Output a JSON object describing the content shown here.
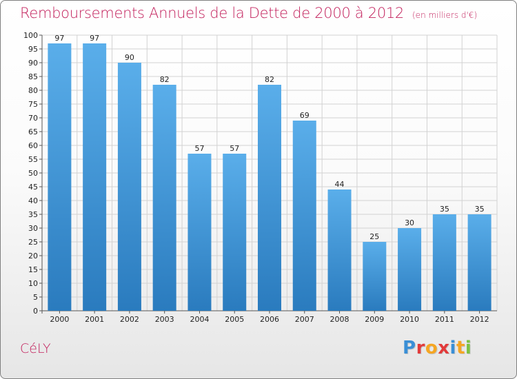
{
  "title": "Remboursements Annuels de la Dette de 2000 à 2012",
  "subtitle": "(en milliers d'€)",
  "commune": "CéLY",
  "logo": {
    "text": "Proxiti",
    "letter_colors": [
      "#3a8fd6",
      "#e23b3b",
      "#f5a623",
      "#e23b3b",
      "#3a8fd6",
      "#f5a623",
      "#7cc242"
    ]
  },
  "colors": {
    "title": "#c21f5b",
    "bar_top": "#5aaeea",
    "bar_bottom": "#2a7bbe",
    "grid": "#d2d2d2"
  },
  "chart_data": {
    "type": "bar",
    "title": "Remboursements Annuels de la Dette de 2000 à 2012",
    "subtitle": "(en milliers d'€)",
    "categories": [
      "2000",
      "2001",
      "2002",
      "2003",
      "2004",
      "2005",
      "2006",
      "2007",
      "2008",
      "2009",
      "2010",
      "2011",
      "2012"
    ],
    "values": [
      97,
      97,
      90,
      82,
      57,
      57,
      82,
      69,
      44,
      25,
      30,
      35,
      35
    ],
    "ylim": [
      0,
      100
    ],
    "ytick_step": 5,
    "grid": true,
    "data_labels": true
  }
}
